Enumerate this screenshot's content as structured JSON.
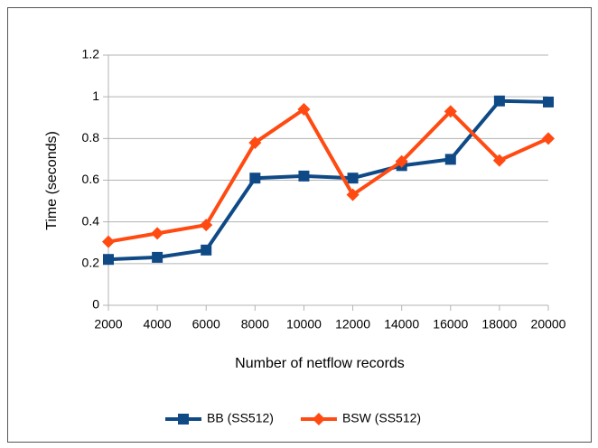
{
  "chart_data": {
    "type": "line",
    "x_label": "Number of netflow records",
    "y_label": "Time (seconds)",
    "x": [
      2000,
      4000,
      6000,
      8000,
      10000,
      12000,
      14000,
      16000,
      18000,
      20000
    ],
    "xlim": [
      2000,
      20000
    ],
    "xticks": [
      2000,
      4000,
      6000,
      8000,
      10000,
      12000,
      14000,
      16000,
      18000,
      20000
    ],
    "ylim": [
      0,
      1.2
    ],
    "yticks": [
      0,
      0.2,
      0.4,
      0.6,
      0.8,
      1,
      1.2
    ],
    "grid": true,
    "legend": "bottom",
    "series": [
      {
        "name": "BB (SS512)",
        "color": "#0f4a86",
        "marker": "square",
        "values": [
          0.22,
          0.23,
          0.265,
          0.61,
          0.62,
          0.61,
          0.67,
          0.7,
          0.98,
          0.975
        ]
      },
      {
        "name": "BSW (SS512)",
        "color": "#ff4a12",
        "marker": "diamond",
        "values": [
          0.305,
          0.345,
          0.385,
          0.78,
          0.94,
          0.53,
          0.69,
          0.93,
          0.695,
          0.8
        ]
      }
    ]
  }
}
